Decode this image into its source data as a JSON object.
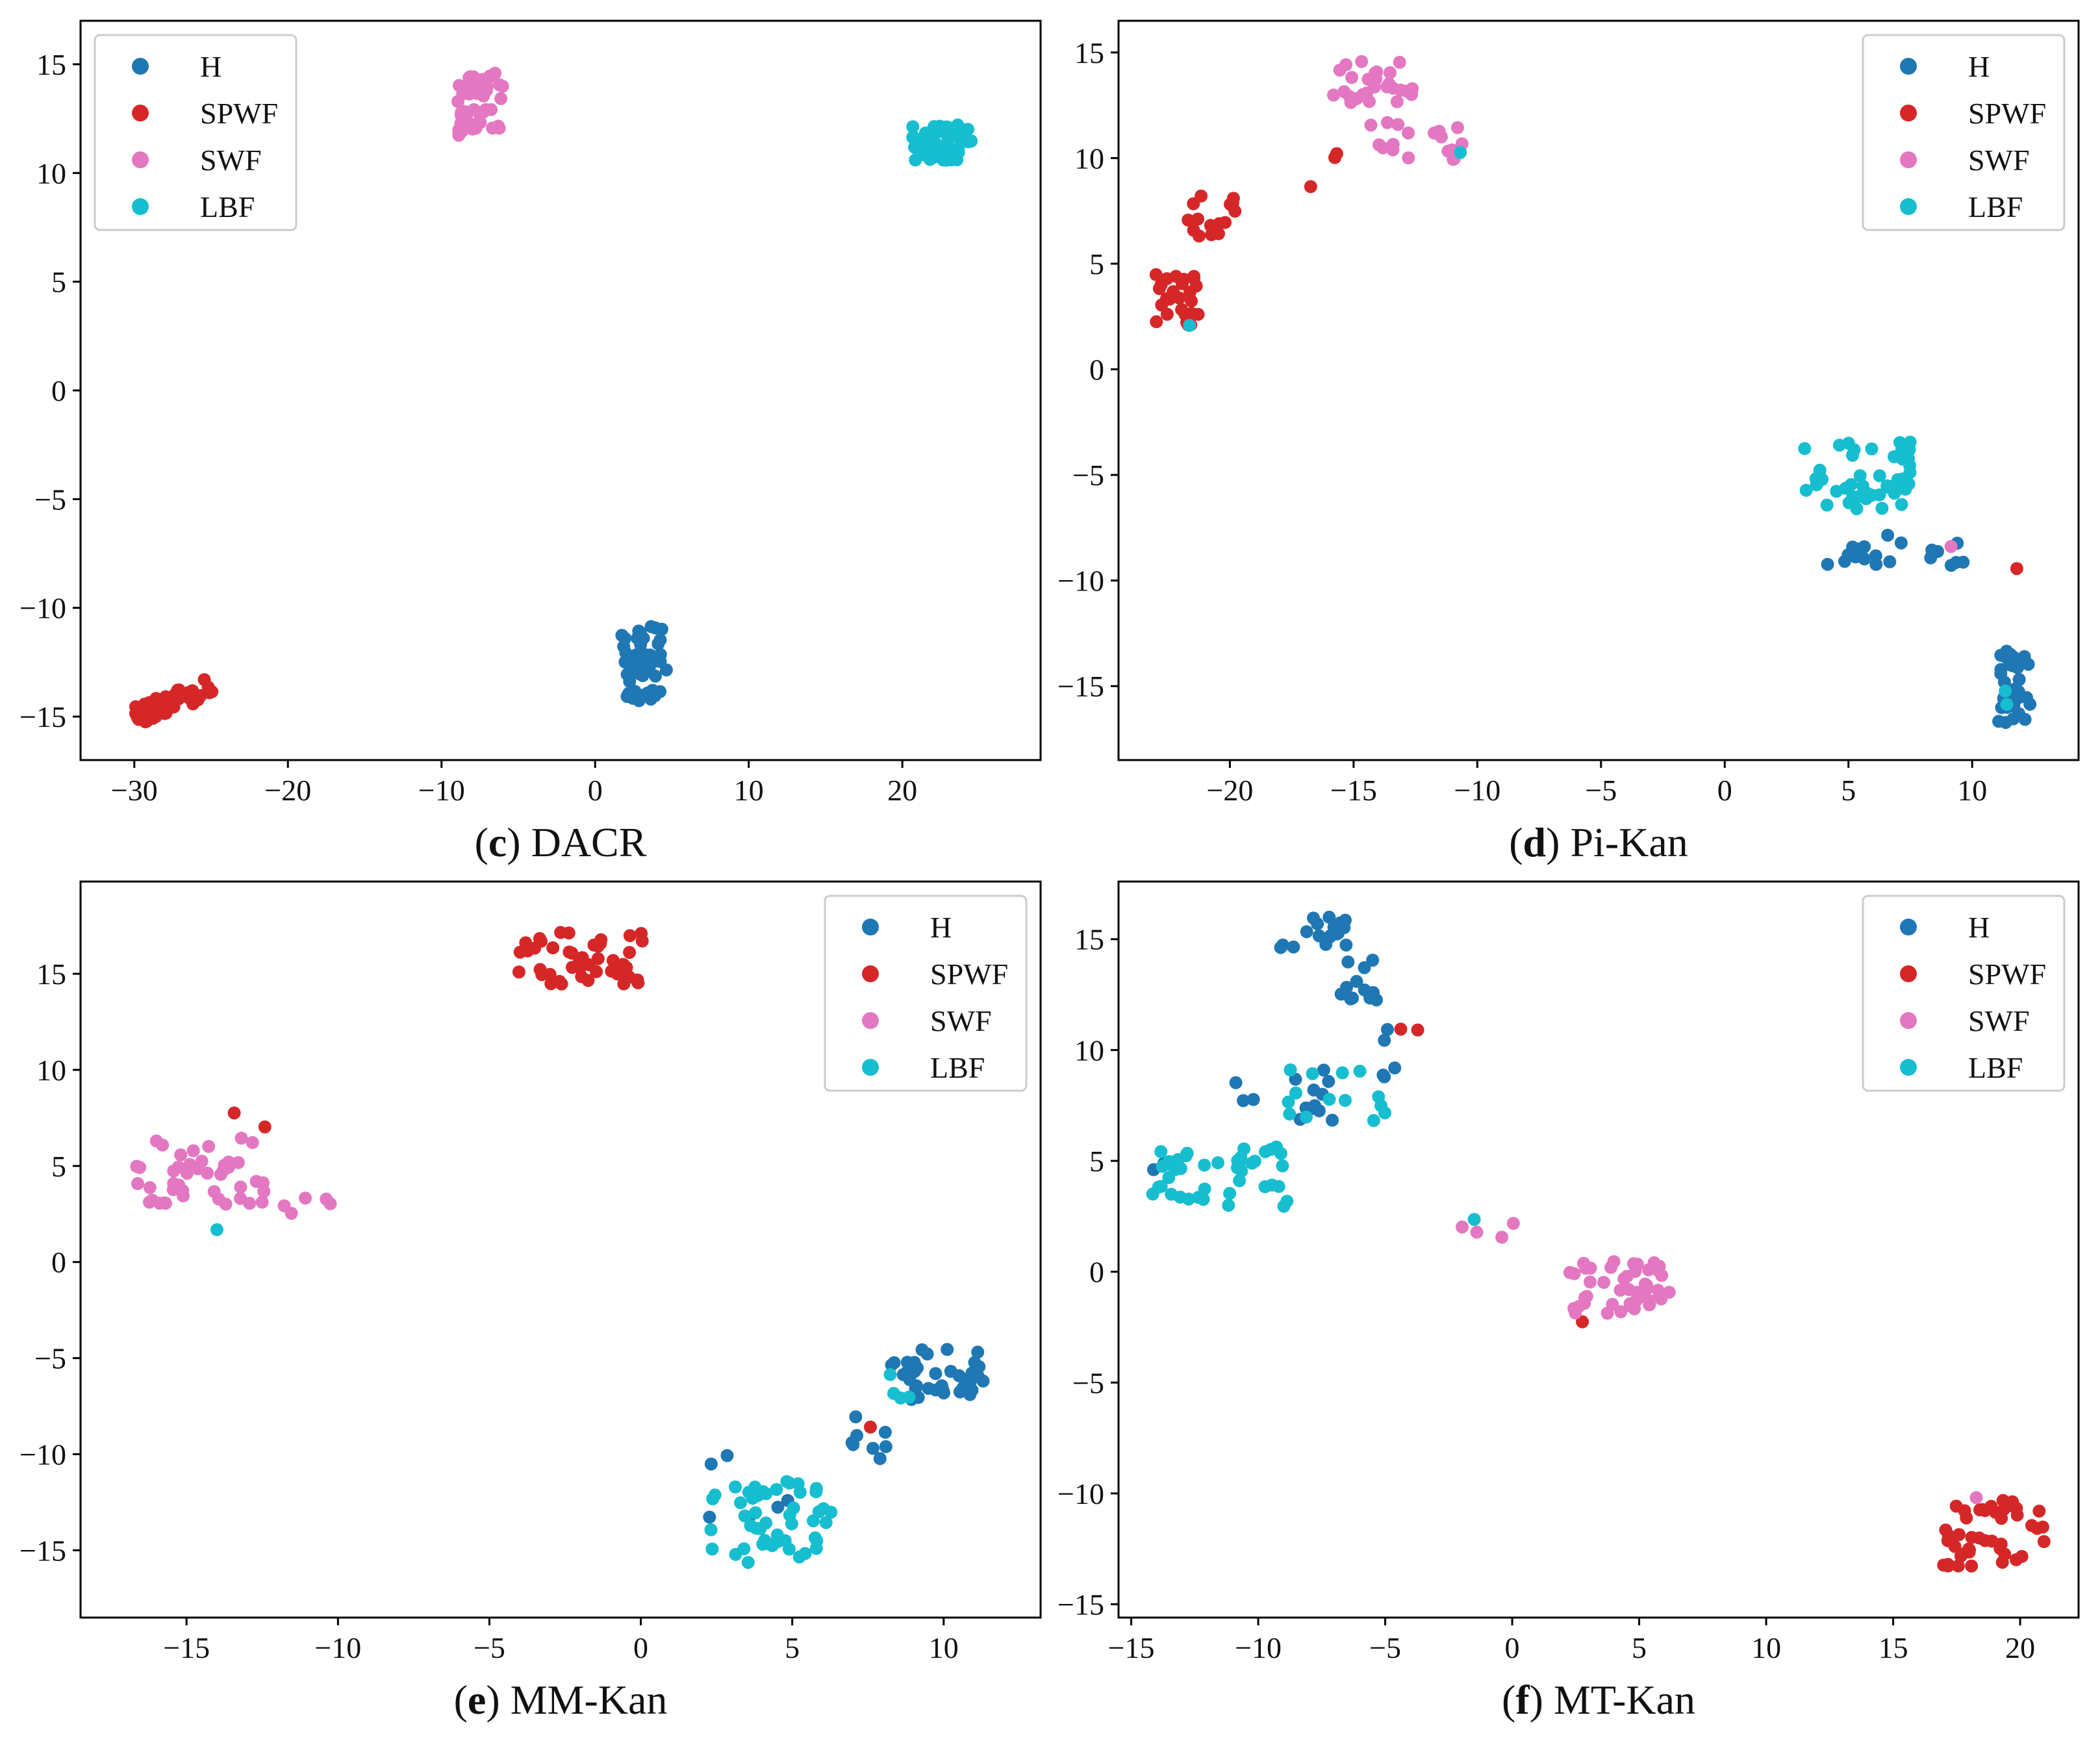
{
  "figure": {
    "colors": {
      "H": "#1f77b4",
      "SPWF": "#d62728",
      "SWF": "#e377c2",
      "LBF": "#17becf"
    }
  },
  "chart_data": [
    {
      "type": "scatter",
      "caption_letter": "c",
      "caption_name": "DACR",
      "caption_open": "(",
      "caption_close": ")",
      "xlim": [
        -33.5,
        29
      ],
      "ylim": [
        -17,
        17
      ],
      "xticks": [
        -30,
        -20,
        -10,
        0,
        10,
        20
      ],
      "yticks": [
        -15,
        -10,
        -5,
        0,
        5,
        10,
        15
      ],
      "legend": [
        "H",
        "SPWF",
        "SWF",
        "LBF"
      ],
      "legend_position": "top-left",
      "series": [
        {
          "name": "H",
          "clusters": [
            {
              "cx": 3.2,
              "cy": -12.6,
              "sx": 1.1,
              "sy": 1.3,
              "n": 55,
              "seed": 11
            }
          ]
        },
        {
          "name": "SPWF",
          "clusters": [
            {
              "cx": -27.5,
              "cy": -14.3,
              "sx": 1.9,
              "sy": 0.35,
              "n": 55,
              "seed": 12,
              "tilt": 0.27
            }
          ]
        },
        {
          "name": "SWF",
          "clusters": [
            {
              "cx": -7.5,
              "cy": 13.2,
              "sx": 1.1,
              "sy": 1.1,
              "n": 55,
              "seed": 13
            }
          ]
        },
        {
          "name": "LBF",
          "clusters": [
            {
              "cx": 22.5,
              "cy": 11.4,
              "sx": 1.5,
              "sy": 0.6,
              "n": 55,
              "seed": 14
            }
          ]
        }
      ]
    },
    {
      "type": "scatter",
      "caption_letter": "d",
      "caption_name": "Pi-Kan",
      "caption_open": "(",
      "caption_close": ")",
      "xlim": [
        -24.5,
        14.3
      ],
      "ylim": [
        -18.5,
        16.5
      ],
      "xticks": [
        -20,
        -15,
        -10,
        -5,
        0,
        5,
        10
      ],
      "yticks": [
        -15,
        -10,
        -5,
        0,
        5,
        10,
        15
      ],
      "legend": [
        "H",
        "SPWF",
        "SWF",
        "LBF"
      ],
      "legend_position": "top-right",
      "series": [
        {
          "name": "H",
          "clusters": [
            {
              "cx": 11.7,
              "cy": -15.0,
              "sx": 0.5,
              "sy": 1.3,
              "n": 35,
              "seed": 21
            },
            {
              "cx": 7.5,
              "cy": -8.5,
              "sx": 2.5,
              "sy": 0.6,
              "n": 20,
              "seed": 22
            }
          ]
        },
        {
          "name": "SPWF",
          "clusters": [
            {
              "cx": -22.2,
              "cy": 3.3,
              "sx": 0.7,
              "sy": 0.9,
              "n": 28,
              "seed": 23
            },
            {
              "cx": -20.8,
              "cy": 7.2,
              "sx": 0.8,
              "sy": 0.8,
              "n": 16,
              "seed": 24
            },
            {
              "cx": -16.0,
              "cy": 9.5,
              "sx": 1.2,
              "sy": 0.8,
              "n": 3,
              "seed": 25
            },
            {
              "cx": 11.8,
              "cy": -9.5,
              "sx": 0.1,
              "sy": 0.1,
              "n": 1,
              "seed": 26
            }
          ]
        },
        {
          "name": "SWF",
          "clusters": [
            {
              "cx": -14.0,
              "cy": 13.7,
              "sx": 1.4,
              "sy": 0.8,
              "n": 28,
              "seed": 27
            },
            {
              "cx": -12.5,
              "cy": 10.8,
              "sx": 1.5,
              "sy": 0.7,
              "n": 18,
              "seed": 28
            },
            {
              "cx": 9.3,
              "cy": -8.2,
              "sx": 0.2,
              "sy": 0.2,
              "n": 1,
              "seed": 29
            }
          ]
        },
        {
          "name": "LBF",
          "clusters": [
            {
              "cx": 5.5,
              "cy": -5.0,
              "sx": 1.7,
              "sy": 1.2,
              "n": 45,
              "seed": 30
            },
            {
              "cx": 11.2,
              "cy": -15.5,
              "sx": 0.3,
              "sy": 0.3,
              "n": 2,
              "seed": 31
            },
            {
              "cx": -21.6,
              "cy": 2.0,
              "sx": 0.1,
              "sy": 0.1,
              "n": 1,
              "seed": 32
            },
            {
              "cx": -10.7,
              "cy": 10.2,
              "sx": 0.1,
              "sy": 0.1,
              "n": 1,
              "seed": 33
            }
          ]
        }
      ]
    },
    {
      "type": "scatter",
      "caption_letter": "e",
      "caption_name": "MM-Kan",
      "caption_open": "(",
      "caption_close": ")",
      "xlim": [
        -18.5,
        13.2
      ],
      "ylim": [
        -18.5,
        19.8
      ],
      "xticks": [
        -15,
        -10,
        -5,
        0,
        5,
        10
      ],
      "yticks": [
        -15,
        -10,
        -5,
        0,
        5,
        10,
        15
      ],
      "legend": [
        "H",
        "SPWF",
        "SWF",
        "LBF"
      ],
      "legend_position": "top-right",
      "series": [
        {
          "name": "H",
          "clusters": [
            {
              "cx": 9.8,
              "cy": -5.8,
              "sx": 1.2,
              "sy": 1.0,
              "n": 40,
              "seed": 41
            },
            {
              "cx": 7.5,
              "cy": -9.5,
              "sx": 0.6,
              "sy": 1.4,
              "n": 8,
              "seed": 42
            },
            {
              "cx": 3.5,
              "cy": -11.5,
              "sx": 1.0,
              "sy": 1.5,
              "n": 6,
              "seed": 43
            }
          ]
        },
        {
          "name": "SPWF",
          "clusters": [
            {
              "cx": -2.0,
              "cy": 15.8,
              "sx": 1.6,
              "sy": 1.0,
              "n": 48,
              "seed": 44
            },
            {
              "cx": -12.8,
              "cy": 7.2,
              "sx": 0.5,
              "sy": 0.5,
              "n": 2,
              "seed": 45
            },
            {
              "cx": 7.7,
              "cy": -8.7,
              "sx": 0.1,
              "sy": 0.1,
              "n": 1,
              "seed": 46
            }
          ]
        },
        {
          "name": "SWF",
          "clusters": [
            {
              "cx": -14.5,
              "cy": 4.7,
              "sx": 1.6,
              "sy": 1.3,
              "n": 45,
              "seed": 47
            },
            {
              "cx": -11.0,
              "cy": 3.0,
              "sx": 0.8,
              "sy": 0.4,
              "n": 5,
              "seed": 48
            }
          ]
        },
        {
          "name": "LBF",
          "clusters": [
            {
              "cx": 4.3,
              "cy": -13.5,
              "sx": 1.5,
              "sy": 1.6,
              "n": 50,
              "seed": 49
            },
            {
              "cx": 8.8,
              "cy": -6.5,
              "sx": 0.5,
              "sy": 0.5,
              "n": 4,
              "seed": 50
            },
            {
              "cx": -13.9,
              "cy": 1.8,
              "sx": 0.1,
              "sy": 0.1,
              "n": 1,
              "seed": 51
            }
          ]
        }
      ]
    },
    {
      "type": "scatter",
      "caption_letter": "f",
      "caption_name": "MT-Kan",
      "caption_open": "(",
      "caption_close": ")",
      "xlim": [
        -15.5,
        22.3
      ],
      "ylim": [
        -15.6,
        17.6
      ],
      "xticks": [
        -15,
        -10,
        -5,
        0,
        5,
        10,
        15,
        20
      ],
      "yticks": [
        -15,
        -10,
        -5,
        0,
        5,
        10,
        15
      ],
      "legend": [
        "H",
        "SPWF",
        "SWF",
        "LBF"
      ],
      "legend_position": "top-right",
      "series": [
        {
          "name": "H",
          "clusters": [
            {
              "cx": -7.8,
              "cy": 15.3,
              "sx": 1.0,
              "sy": 0.7,
              "n": 18,
              "seed": 61
            },
            {
              "cx": -6.0,
              "cy": 13.0,
              "sx": 0.6,
              "sy": 0.8,
              "n": 12,
              "seed": 62
            },
            {
              "cx": -4.8,
              "cy": 10.0,
              "sx": 0.4,
              "sy": 1.0,
              "n": 5,
              "seed": 63
            },
            {
              "cx": -9.0,
              "cy": 7.5,
              "sx": 1.5,
              "sy": 1.2,
              "n": 14,
              "seed": 64
            },
            {
              "cx": -13.8,
              "cy": 4.7,
              "sx": 0.3,
              "sy": 0.3,
              "n": 2,
              "seed": 65
            }
          ]
        },
        {
          "name": "SPWF",
          "clusters": [
            {
              "cx": 19.0,
              "cy": -11.8,
              "sx": 1.5,
              "sy": 1.1,
              "n": 48,
              "seed": 66
            },
            {
              "cx": -4.5,
              "cy": 11.0,
              "sx": 0.6,
              "sy": 0.5,
              "n": 2,
              "seed": 67
            },
            {
              "cx": 2.8,
              "cy": -2.2,
              "sx": 0.1,
              "sy": 0.1,
              "n": 1,
              "seed": 68
            }
          ]
        },
        {
          "name": "SWF",
          "clusters": [
            {
              "cx": 4.2,
              "cy": -0.8,
              "sx": 1.5,
              "sy": 1.0,
              "n": 45,
              "seed": 69
            },
            {
              "cx": -1.0,
              "cy": 1.8,
              "sx": 0.8,
              "sy": 0.4,
              "n": 4,
              "seed": 70
            },
            {
              "cx": 18.2,
              "cy": -10.1,
              "sx": 0.1,
              "sy": 0.1,
              "n": 1,
              "seed": 71
            }
          ]
        },
        {
          "name": "LBF",
          "clusters": [
            {
              "cx": -11.5,
              "cy": 4.3,
              "sx": 2.0,
              "sy": 1.0,
              "n": 42,
              "seed": 72
            },
            {
              "cx": -7.0,
              "cy": 8.0,
              "sx": 1.5,
              "sy": 1.0,
              "n": 14,
              "seed": 73
            },
            {
              "cx": -1.4,
              "cy": 2.3,
              "sx": 0.1,
              "sy": 0.1,
              "n": 1,
              "seed": 74
            }
          ]
        }
      ]
    }
  ]
}
